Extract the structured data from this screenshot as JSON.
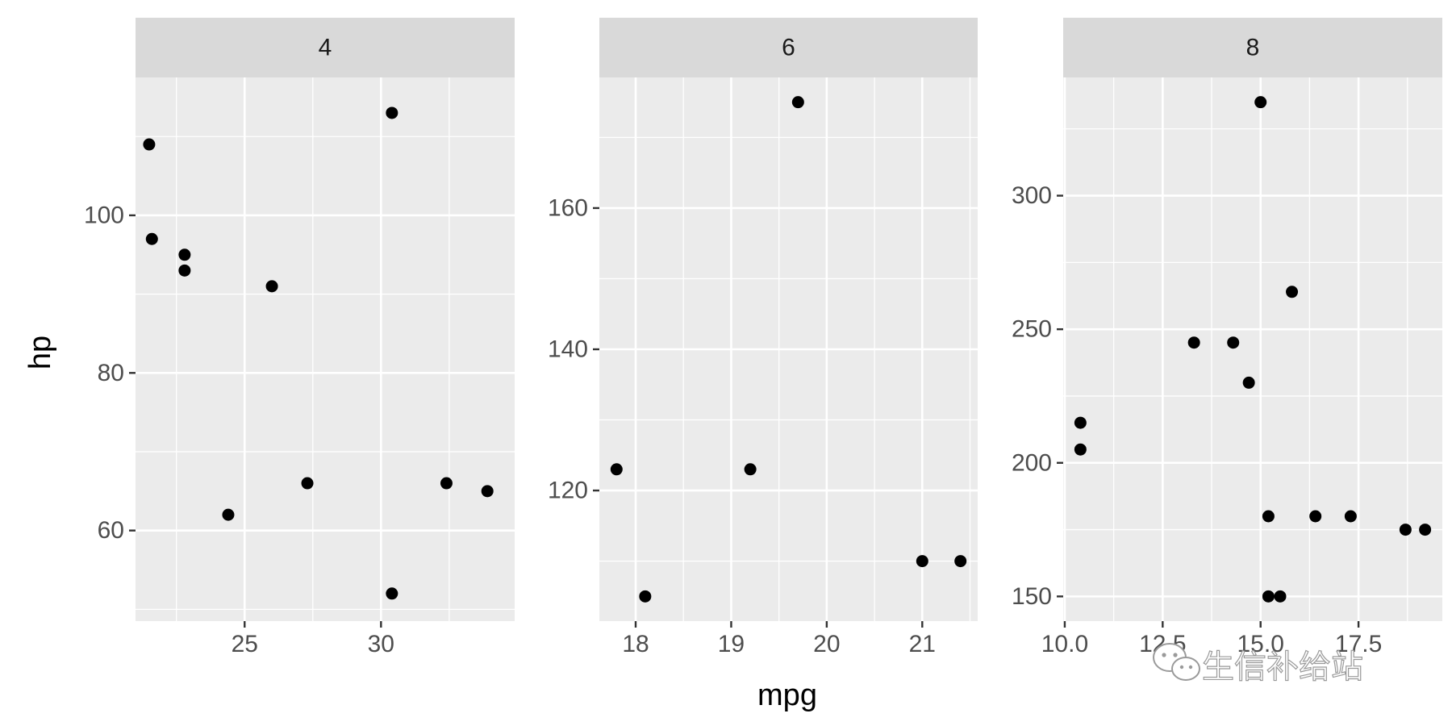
{
  "chart_data": {
    "type": "scatter",
    "facet_variable": "cyl",
    "xlabel": "mpg",
    "ylabel": "hp",
    "grid": true,
    "panels": [
      {
        "strip": "4",
        "xlim": [
          21.0,
          34.9
        ],
        "ylim": [
          48.5,
          117.5
        ],
        "x_ticks": [
          25,
          30
        ],
        "y_ticks": [
          60,
          80,
          100
        ],
        "points": [
          {
            "x": 21.5,
            "y": 109
          },
          {
            "x": 21.6,
            "y": 97
          },
          {
            "x": 22.8,
            "y": 95
          },
          {
            "x": 22.8,
            "y": 93
          },
          {
            "x": 24.4,
            "y": 62
          },
          {
            "x": 26.0,
            "y": 91
          },
          {
            "x": 27.3,
            "y": 66
          },
          {
            "x": 30.4,
            "y": 113
          },
          {
            "x": 30.4,
            "y": 52
          },
          {
            "x": 32.4,
            "y": 66
          },
          {
            "x": 33.9,
            "y": 65
          }
        ]
      },
      {
        "strip": "6",
        "xlim": [
          17.62,
          21.58
        ],
        "ylim": [
          101.5,
          178.5
        ],
        "x_ticks": [
          18,
          19,
          20,
          21
        ],
        "y_ticks": [
          120,
          140,
          160
        ],
        "points": [
          {
            "x": 21.0,
            "y": 110
          },
          {
            "x": 21.4,
            "y": 110
          },
          {
            "x": 18.1,
            "y": 105
          },
          {
            "x": 19.2,
            "y": 123
          },
          {
            "x": 17.8,
            "y": 123
          },
          {
            "x": 19.7,
            "y": 175
          }
        ]
      },
      {
        "strip": "8",
        "xlim": [
          9.96,
          19.64
        ],
        "ylim": [
          140.75,
          344.25
        ],
        "x_ticks": [
          10.0,
          12.5,
          15.0,
          17.5
        ],
        "x_tick_labels": [
          "10.0",
          "12.5",
          "15.0",
          "17.5"
        ],
        "y_ticks": [
          150,
          200,
          250,
          300
        ],
        "points": [
          {
            "x": 18.7,
            "y": 175
          },
          {
            "x": 14.3,
            "y": 245
          },
          {
            "x": 16.4,
            "y": 180
          },
          {
            "x": 17.3,
            "y": 180
          },
          {
            "x": 15.2,
            "y": 180
          },
          {
            "x": 10.4,
            "y": 205
          },
          {
            "x": 10.4,
            "y": 215
          },
          {
            "x": 14.7,
            "y": 230
          },
          {
            "x": 15.5,
            "y": 150
          },
          {
            "x": 15.2,
            "y": 150
          },
          {
            "x": 13.3,
            "y": 245
          },
          {
            "x": 19.2,
            "y": 175
          },
          {
            "x": 15.8,
            "y": 264
          },
          {
            "x": 15.0,
            "y": 335
          }
        ]
      }
    ]
  },
  "watermark": {
    "text": "生信补给站",
    "icon": "wechat-icon"
  }
}
